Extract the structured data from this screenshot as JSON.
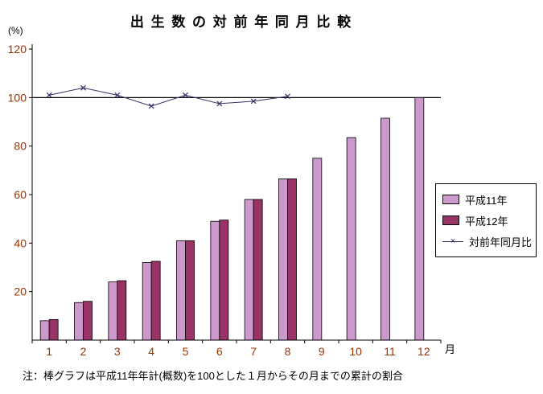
{
  "note": "注：棒グラフは平成11年年計(概数)を100とした１月からその月までの累計の割合",
  "colors": {
    "background": "#ffffff",
    "axis": "#000000",
    "tick_label": "#993300",
    "reference_line": "#000000"
  },
  "chart_data": {
    "type": "bar",
    "title": "出 生 数 の 対 前 年 同 月 比 較",
    "ylabel": "(%)",
    "xlabel": "月",
    "categories": [
      "1",
      "2",
      "3",
      "4",
      "5",
      "6",
      "7",
      "8",
      "9",
      "10",
      "11",
      "12"
    ],
    "bar_series": [
      {
        "name": "平成11年",
        "color": "#cc99cc",
        "border": "#000000",
        "values": [
          8,
          15.5,
          24,
          32,
          41,
          49,
          58,
          66.5,
          75,
          83.5,
          91.5,
          100
        ]
      },
      {
        "name": "平成12年",
        "color": "#993366",
        "border": "#000000",
        "values": [
          8.5,
          16,
          24.5,
          32.5,
          41,
          49.5,
          58,
          66.5,
          null,
          null,
          null,
          null
        ]
      }
    ],
    "line_series": [
      {
        "name": "対前年同月比",
        "color": "#333366",
        "marker": "x",
        "marker_glyph": "×",
        "values": [
          101,
          104,
          101,
          96.5,
          101,
          97.5,
          98.5,
          100.5,
          null,
          null,
          null,
          null
        ]
      }
    ],
    "ylim": [
      0,
      122
    ],
    "yticks": [
      20,
      40,
      60,
      80,
      100,
      120
    ],
    "reference_line": 100,
    "grid": false,
    "legend_position": "right"
  }
}
